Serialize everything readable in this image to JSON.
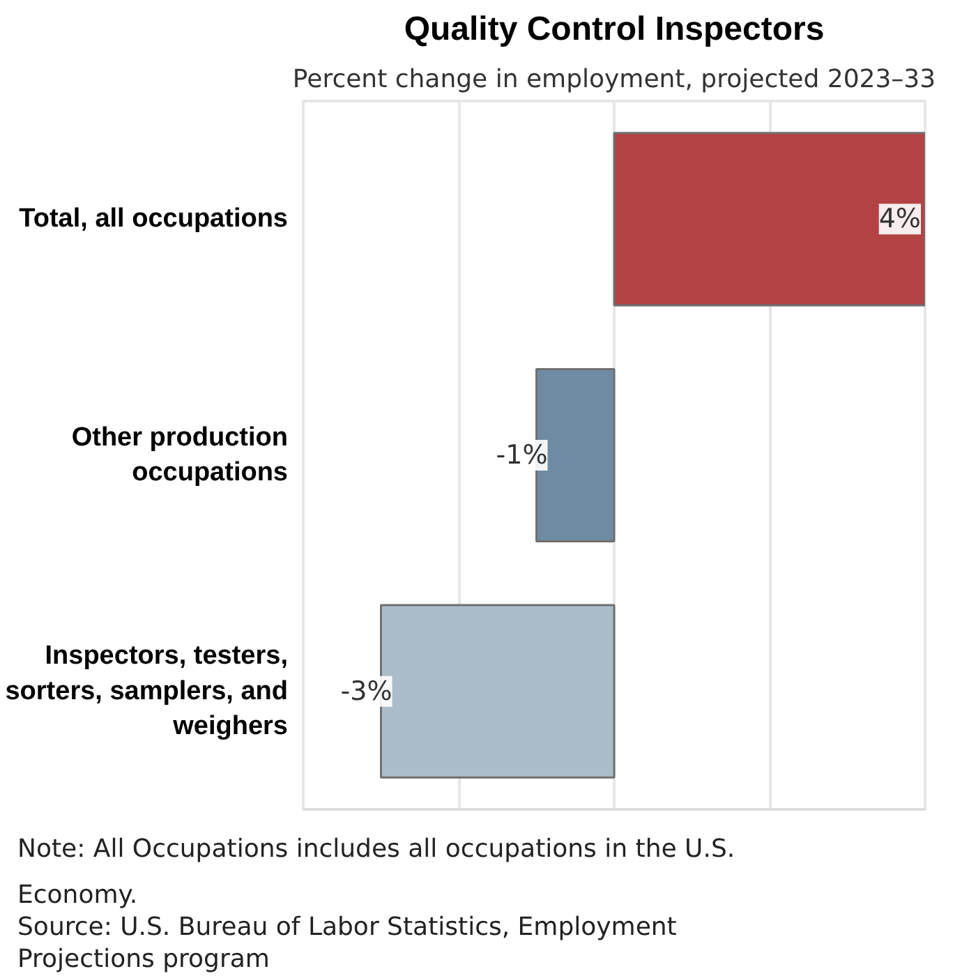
{
  "chart_data": {
    "type": "bar",
    "orientation": "horizontal",
    "title": "Quality Control Inspectors",
    "subtitle": "Percent change in employment, projected 2023–33",
    "categories": [
      "Total, all occupations",
      "Other production occupations",
      "Inspectors, testers, sorters, samplers, and weighers"
    ],
    "values": [
      4,
      -1,
      -3
    ],
    "colors": [
      "#b34244",
      "#6f8ba3",
      "#acbdca"
    ],
    "value_labels": [
      "4%",
      "-1%",
      "-3%"
    ],
    "xlim": [
      -4,
      4
    ],
    "xticks": [
      {
        "value": -2,
        "label": null
      },
      {
        "value": 0,
        "label": null
      },
      {
        "value": 2,
        "label": null
      }
    ],
    "tick_labels": "y",
    "grid": "x",
    "annotations": [
      "Note: All Occupations includes all occupations in the U.S. Economy.",
      "Source: U.S. Bureau of Labor Statistics, Employment Projections program"
    ]
  }
}
